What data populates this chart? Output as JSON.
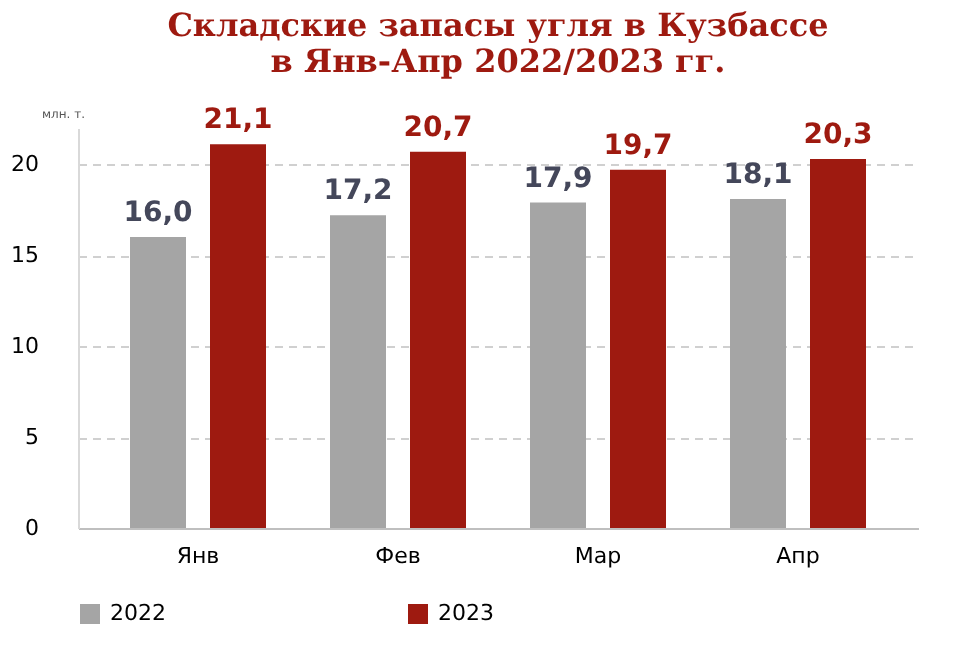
{
  "chart_data": {
    "type": "bar",
    "title": "Складские запасы угля в Кузбассе\nв Янв-Апр 2022/2023 гг.",
    "ylabel": "млн. т.",
    "categories": [
      "Янв",
      "Фев",
      "Мар",
      "Апр"
    ],
    "series": [
      {
        "name": "2022",
        "color": "#a5a5a5",
        "values": [
          16.0,
          17.2,
          17.9,
          18.1
        ],
        "value_labels": [
          "16,0",
          "17,2",
          "17,9",
          "18,1"
        ]
      },
      {
        "name": "2023",
        "color": "#9e1a10",
        "values": [
          21.1,
          20.7,
          19.7,
          20.3
        ],
        "value_labels": [
          "21,1",
          "20,7",
          "19,7",
          "20,3"
        ]
      }
    ],
    "ylim": [
      0,
      22
    ],
    "yticks": [
      0,
      5,
      10,
      15,
      20
    ],
    "grid": "y",
    "legend": "bottom"
  }
}
